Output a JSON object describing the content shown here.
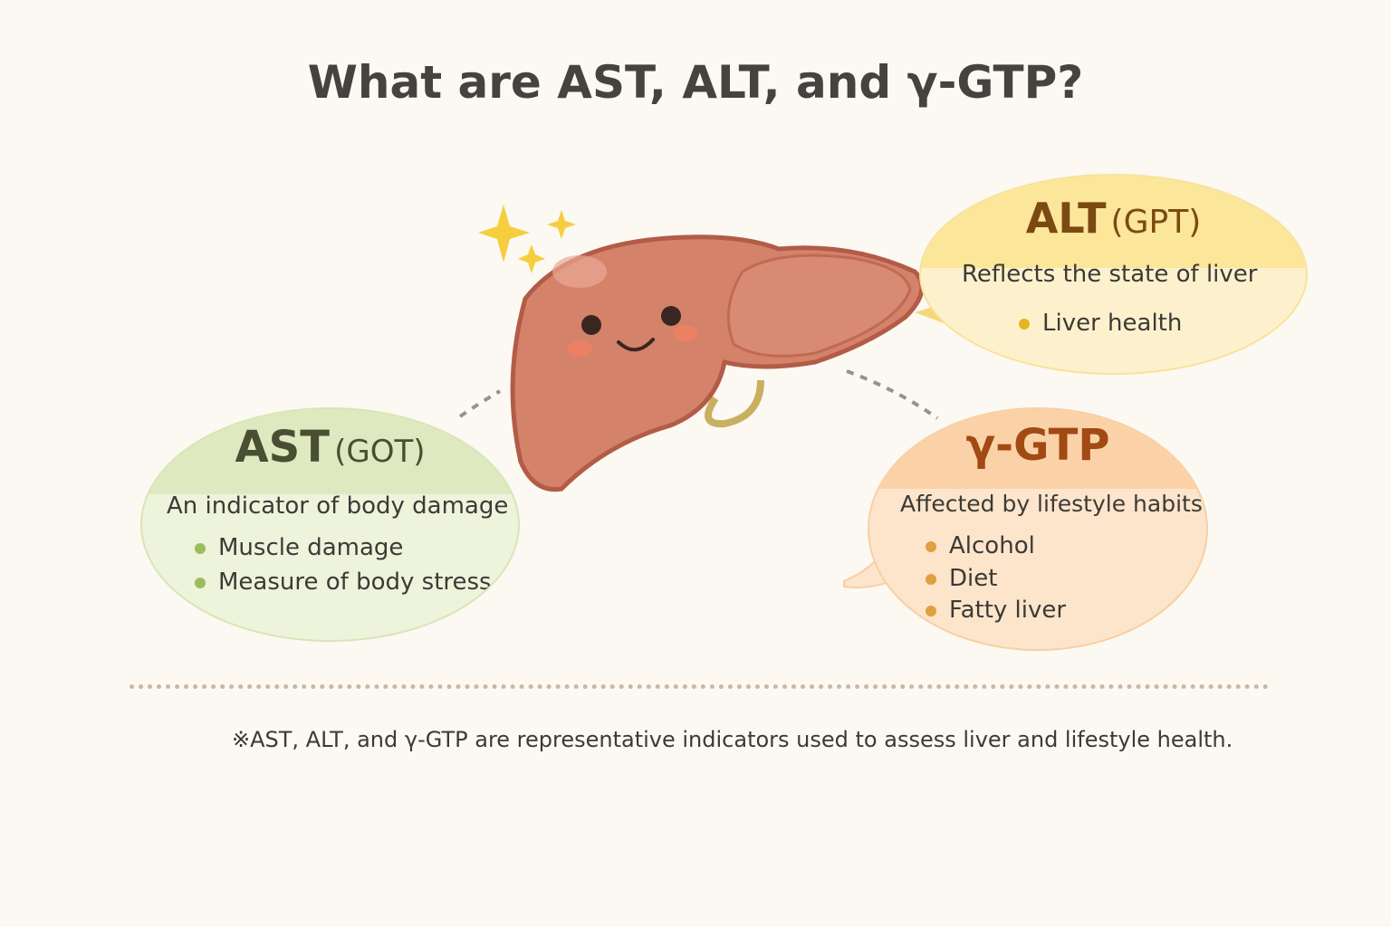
{
  "title": "What are AST, ALT, and γ-GTP?",
  "ast": {
    "name": "AST",
    "alias": "(GOT)",
    "description": "An indicator of body damage",
    "items": [
      "Muscle damage",
      "Measure of body stress"
    ],
    "color": "#dfe9bf",
    "dot_color": "#9bbd5c"
  },
  "alt": {
    "name": "ALT",
    "alias": "(GPT)",
    "description": "Reflects the state of liver",
    "items": [
      "Liver health"
    ],
    "color": "#fbe69a",
    "dot_color": "#e6b420"
  },
  "ggt": {
    "name": "γ-GTP",
    "description": "Affected by lifestyle habits",
    "items": [
      "Alcohol",
      "Diet",
      "Fatty liver"
    ],
    "color": "#fbd2a8",
    "dot_color": "#e0a040"
  },
  "footnote": "※AST, ALT, and γ-GTP are representative indicators used to assess liver and lifestyle health."
}
